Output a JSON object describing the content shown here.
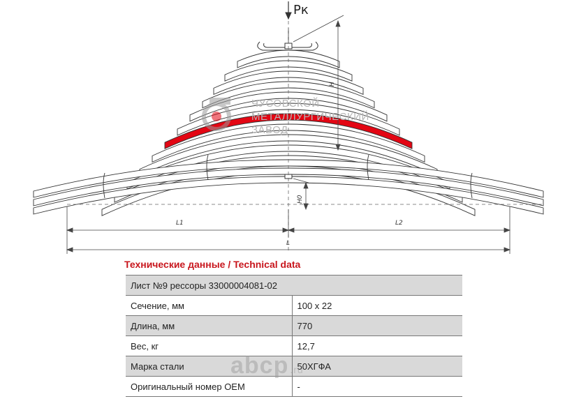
{
  "drawing": {
    "load_label": "Рк",
    "dim_H": "H",
    "dim_H0": "H0",
    "dim_L1": "L1",
    "dim_L2": "L2",
    "dim_L": "L",
    "highlight_color": "#e30613",
    "watermark": {
      "line1": "ЧУСОВСКОЙ",
      "line2": "МЕТАЛЛУРГИЧЕСКИЙ",
      "line3": "ЗАВОД",
      "logo_icon": "chmz-logo-icon"
    }
  },
  "tech": {
    "title": "Технические данные / Technical data",
    "rows": [
      {
        "label": "Лист №9 рессоры 33000004081-02",
        "value": ""
      },
      {
        "label": "Сечение, мм",
        "value": "100 x 22"
      },
      {
        "label": "Длина, мм",
        "value": "770"
      },
      {
        "label": "Вес, кг",
        "value": "12,7"
      },
      {
        "label": "Марка стали",
        "value": "50ХГФА"
      },
      {
        "label": "Оригинальный номер OEM",
        "value": "-"
      }
    ]
  },
  "watermark_site": {
    "main": "abcp",
    "suffix": ".ru"
  }
}
